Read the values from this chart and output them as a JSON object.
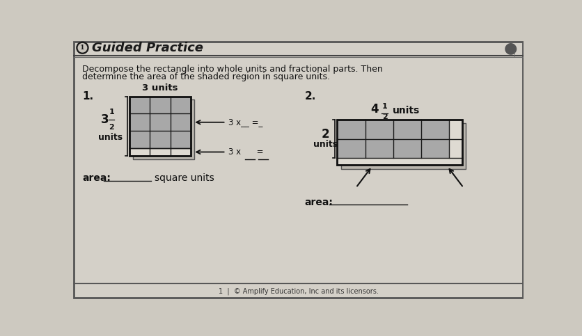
{
  "bg_color": "#cdc9c0",
  "page_color": "#d4d0c8",
  "title": "Guided Practice",
  "instruction_line1": "Decompose the rectangle into whole units and fractional parts. Then",
  "instruction_line2": "determine the area of the shaded region in square units.",
  "problem1": {
    "number": "1.",
    "top_label": "3 units",
    "side_label_whole": "3",
    "side_label_frac_num": "1",
    "side_label_frac_den": "2",
    "side_label_unit": "units",
    "grid_cols": 3,
    "grid_rows": 3,
    "shaded_color": "#a8a8a8",
    "unshaded_color": "#dedad2",
    "border_color": "#1a1a1a",
    "ann1": "3 x__ =_",
    "ann2": "3 x      =",
    "area_label": "area:",
    "area_unit": "square units"
  },
  "problem2": {
    "number": "2.",
    "top_label_whole": "4",
    "top_label_frac_num": "1",
    "top_label_frac_den": "2",
    "top_label_unit": "units",
    "side_label_whole": "2",
    "side_label_unit": "units",
    "grid_cols": 4,
    "grid_rows": 2,
    "shaded_color": "#a8a8a8",
    "unshaded_color": "#dedad2",
    "border_color": "#1a1a1a",
    "area_label": "area:"
  },
  "footer": "1  |  © Amplify Education, Inc and its licensors.",
  "header_bg": "#c8c4bc",
  "header_text_color": "#1a1a1a",
  "icon_color": "#1a1a1a"
}
